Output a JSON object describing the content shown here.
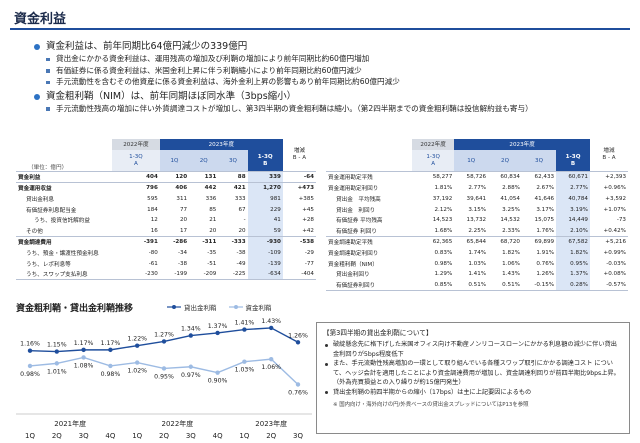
{
  "title": "資金利益",
  "bullets": {
    "b1": "資金利益は、前年同期比64億円減少の339億円",
    "b1_subs": [
      "貸出金にかかる資金利益は、運用残高の増加及び利鞘の増加により前年同期比約60億円増加",
      "有価証券に係る資金利益は、米国金利上昇に伴う利鞘縮小により前年同期比約60億円減少",
      "手元流動性を含むその他資産に係る資金利益は、海外金利上昇の影響もあり前年同期比約60億円減少"
    ],
    "b2": "資金粗利鞘（NIM）は、前年同期ほぼ同水準（3bps縮小）",
    "b2_subs": [
      "手元流動性残高の増加に伴い外貨調達コストが増加し、第3四半期の資金粗利鞘は縮小。（第2四半期までの資金粗利鞘は投信解約益も寄与）"
    ]
  },
  "left_table": {
    "unit": "（単位：億円）",
    "fy22": "2022年度",
    "fy23": "2023年度",
    "col_prev": "1-3Q\nA",
    "cols": [
      "1Q",
      "2Q",
      "3Q"
    ],
    "col_cum": "1-3Q\nB",
    "col_diff": "増減\nB - A",
    "rows": [
      {
        "label": "資金利益",
        "a": "404",
        "q1": "120",
        "q2": "131",
        "q3": "88",
        "b": "339",
        "d": "-64",
        "bold": true,
        "line": true
      },
      {
        "label": "資金運用収益",
        "a": "796",
        "q1": "406",
        "q2": "442",
        "q3": "421",
        "b": "1,270",
        "d": "+473",
        "bold": true,
        "line": true
      },
      {
        "label": "貸出金利息",
        "a": "595",
        "q1": "311",
        "q2": "336",
        "q3": "333",
        "b": "981",
        "d": "+385",
        "indent": 1
      },
      {
        "label": "有価証券利息配当金",
        "a": "184",
        "q1": "77",
        "q2": "85",
        "q3": "67",
        "b": "229",
        "d": "+45",
        "indent": 1
      },
      {
        "label": "うち、投資信託解約益",
        "a": "12",
        "q1": "20",
        "q2": "21",
        "q3": "-",
        "b": "41",
        "d": "+28",
        "indent": 2
      },
      {
        "label": "その他",
        "a": "16",
        "q1": "17",
        "q2": "20",
        "q3": "20",
        "b": "59",
        "d": "+42",
        "indent": 1
      },
      {
        "label": "資金調達費用",
        "a": "-391",
        "q1": "-286",
        "q2": "-311",
        "q3": "-333",
        "b": "-930",
        "d": "-538",
        "bold": true,
        "line": true
      },
      {
        "label": "うち、預金・譲渡性預金利息",
        "a": "-80",
        "q1": "-34",
        "q2": "-35",
        "q3": "-38",
        "b": "-109",
        "d": "-29",
        "indent": 1
      },
      {
        "label": "うち、レポ利息等",
        "a": "-61",
        "q1": "-38",
        "q2": "-51",
        "q3": "-49",
        "b": "-139",
        "d": "-77",
        "indent": 1
      },
      {
        "label": "うち、スワップ支払利息",
        "a": "-230",
        "q1": "-199",
        "q2": "-209",
        "q3": "-225",
        "b": "-634",
        "d": "-404",
        "indent": 1,
        "last": true
      }
    ]
  },
  "right_table": {
    "fy22": "2022年度",
    "fy23": "2023年度",
    "col_prev": "1-3Q\nA",
    "cols": [
      "1Q",
      "2Q",
      "3Q"
    ],
    "col_cum": "1-3Q\nB",
    "col_diff": "増減\nB - A",
    "rows": [
      {
        "label": "資金運用勘定平残",
        "a": "58,277",
        "q1": "58,726",
        "q2": "60,834",
        "q3": "62,433",
        "b": "60,671",
        "d": "+2,393",
        "line": true
      },
      {
        "label": "資金運用勘定利回り",
        "a": "1.81%",
        "q1": "2.77%",
        "q2": "2.88%",
        "q3": "2.67%",
        "b": "2.77%",
        "d": "+0.96%"
      },
      {
        "label": "貸出金　平均残高",
        "a": "37,192",
        "q1": "39,641",
        "q2": "41,054",
        "q3": "41,646",
        "b": "40,784",
        "d": "+3,592",
        "indent": 1
      },
      {
        "label": "貸出金　利回り",
        "a": "2.12%",
        "q1": "3.15%",
        "q2": "3.25%",
        "q3": "3.17%",
        "b": "3.19%",
        "d": "+1.07%",
        "indent": 1
      },
      {
        "label": "有価証券 平均残高",
        "a": "14,523",
        "q1": "13,732",
        "q2": "14,532",
        "q3": "15,075",
        "b": "14,449",
        "d": "-73",
        "indent": 1
      },
      {
        "label": "有価証券 利回り",
        "a": "1.68%",
        "q1": "2.25%",
        "q2": "2.33%",
        "q3": "1.76%",
        "b": "2.10%",
        "d": "+0.42%",
        "indent": 1
      },
      {
        "label": "資金調達勘定平残",
        "a": "62,365",
        "q1": "65,844",
        "q2": "68,720",
        "q3": "69,899",
        "b": "67,582",
        "d": "+5,216",
        "line": true
      },
      {
        "label": "資金調達勘定利回り",
        "a": "0.83%",
        "q1": "1.74%",
        "q2": "1.82%",
        "q3": "1.91%",
        "b": "1.82%",
        "d": "+0.99%"
      },
      {
        "label": "資金粗利鞘（NIM）",
        "a": "0.98%",
        "q1": "1.03%",
        "q2": "1.06%",
        "q3": "0.76%",
        "b": "0.95%",
        "d": "-0.03%"
      },
      {
        "label": "貸出金利回り",
        "a": "1.29%",
        "q1": "1.41%",
        "q2": "1.43%",
        "q3": "1.26%",
        "b": "1.37%",
        "d": "+0.08%",
        "indent": 1
      },
      {
        "label": "有価証券利回り",
        "a": "0.85%",
        "q1": "0.51%",
        "q2": "0.51%",
        "q3": "-0.15%",
        "b": "0.28%",
        "d": "-0.57%",
        "indent": 1,
        "last": true
      }
    ]
  },
  "chart_data": {
    "type": "line",
    "title": "資金粗利鞘・貸出金利鞘推移",
    "categories": [
      "1Q",
      "2Q",
      "3Q",
      "4Q",
      "1Q",
      "2Q",
      "3Q",
      "4Q",
      "1Q",
      "2Q",
      "3Q"
    ],
    "year_labels": [
      "2021年度",
      "2022年度",
      "2023年度"
    ],
    "series": [
      {
        "name": "貸出金利鞘",
        "values": [
          1.16,
          1.15,
          1.17,
          1.17,
          1.22,
          1.27,
          1.34,
          1.37,
          1.41,
          1.43,
          1.26
        ],
        "labels": [
          "1.16%",
          "1.15%",
          "1.17%",
          "1.17%",
          "1.22%",
          "1.27%",
          "1.34%",
          "1.37%",
          "1.41%",
          "1.43%",
          "1.26%"
        ],
        "color": "#1f4e9c"
      },
      {
        "name": "資金利鞘",
        "values": [
          0.98,
          1.01,
          1.08,
          0.98,
          1.02,
          0.95,
          0.97,
          0.9,
          1.03,
          1.06,
          0.76
        ],
        "labels": [
          "0.98%",
          "1.01%",
          "1.08%",
          "0.98%",
          "1.02%",
          "0.95%",
          "0.97%",
          "0.90%",
          "1.03%",
          "1.06%",
          "0.76%"
        ],
        "color": "#9dbbe3"
      }
    ],
    "ylim": [
      0.6,
      1.5
    ]
  },
  "note": {
    "title": "【第3四半期の貸出金利鞘について】",
    "items": [
      "破綻懸念先に格下げした米国オフィス向け不動産ノンリコースローンにかかる利息額の減少に伴い貸出金利回りが5bps程度低下",
      "また、手元流動性残高増加の一環として取り組んでいる各種スワップ取引にかかる調達コスト について、ヘッジ会計を適用したことにより資金調達費用が増加し、資金調達利回りが前四半期比9bps上昇。（外為売買損益との入り繰りが約15億円発生）",
      "貸出金利鞘の前四半期からの縮小（17bps）は主に上記要因によるもの"
    ],
    "footnote": "※ 国内向け・海外向けの円/外貨ベースの貸出金スプレッドについてはP13を参照"
  }
}
